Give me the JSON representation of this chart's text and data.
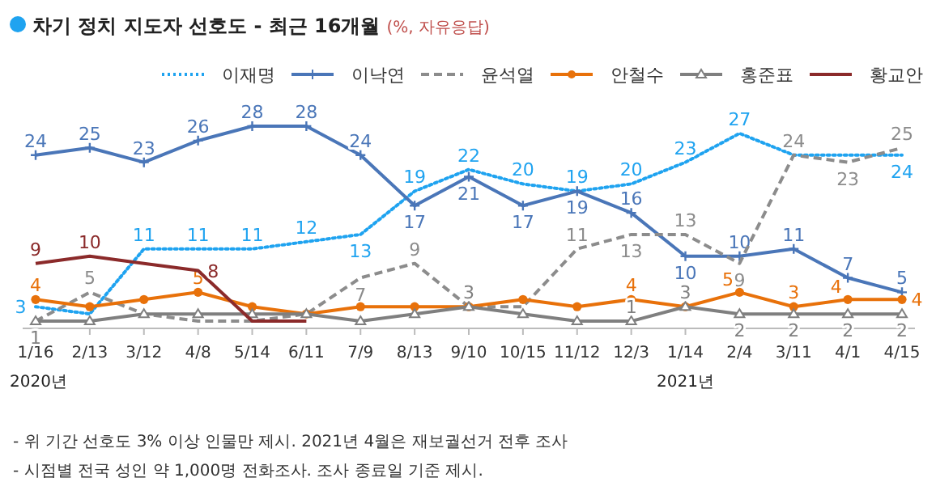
{
  "chart_data": {
    "type": "line",
    "title": "차기 정치 지도자 선호도 - 최근 16개월",
    "subtitle": "(%, 자유응답)",
    "categories": [
      "1/16",
      "2/13",
      "3/12",
      "4/8",
      "5/14",
      "6/11",
      "7/9",
      "8/13",
      "9/10",
      "10/15",
      "11/12",
      "12/3",
      "1/14",
      "2/4",
      "3/11",
      "4/1",
      "4/15"
    ],
    "series": [
      {
        "name": "이재명",
        "color": "#1fa3f0",
        "line_style": "dotted",
        "marker": "none",
        "values": [
          3,
          2,
          11,
          11,
          11,
          12,
          13,
          19,
          22,
          20,
          19,
          20,
          23,
          27,
          24,
          24,
          24
        ],
        "value_labels": [
          "3",
          null,
          "11",
          "11",
          "11",
          "12",
          "13",
          "19",
          "22",
          "20",
          "19",
          "20",
          "23",
          "27",
          null,
          null,
          "24"
        ]
      },
      {
        "name": "이낙연",
        "color": "#4a76b8",
        "line_style": "solid",
        "marker": "cross",
        "values": [
          24,
          25,
          23,
          26,
          28,
          28,
          24,
          17,
          21,
          17,
          19,
          16,
          10,
          10,
          11,
          7,
          5
        ],
        "value_labels": [
          "24",
          "25",
          "23",
          "26",
          "28",
          "28",
          "24",
          "17",
          "21",
          "17",
          "19",
          "16",
          "10",
          "10",
          "11",
          "7",
          "5"
        ]
      },
      {
        "name": "윤석열",
        "color": "#8c8c8c",
        "line_style": "dashed",
        "marker": "none",
        "values": [
          1,
          5,
          2,
          1,
          1,
          2,
          7,
          9,
          3,
          3,
          11,
          13,
          13,
          9,
          24,
          23,
          25
        ],
        "value_labels": [
          null,
          "5",
          null,
          null,
          null,
          null,
          "7",
          "9",
          null,
          null,
          "11",
          "13",
          "13",
          "9",
          "24",
          "23",
          "25"
        ]
      },
      {
        "name": "안철수",
        "color": "#e8710a",
        "line_style": "solid",
        "marker": "circle",
        "values": [
          4,
          3,
          4,
          5,
          3,
          2,
          3,
          3,
          3,
          4,
          3,
          4,
          3,
          5,
          3,
          4,
          4
        ],
        "value_labels": [
          "4",
          null,
          null,
          "5",
          null,
          null,
          null,
          null,
          null,
          null,
          null,
          "4",
          null,
          "5",
          "3",
          "4",
          "4"
        ]
      },
      {
        "name": "홍준표",
        "color": "#7f7f7f",
        "line_style": "solid",
        "marker": "triangle",
        "values": [
          1,
          1,
          2,
          2,
          2,
          2,
          1,
          2,
          3,
          2,
          1,
          1,
          3,
          2,
          2,
          2,
          2
        ],
        "value_labels": [
          "1",
          null,
          null,
          null,
          null,
          null,
          null,
          null,
          "3",
          null,
          null,
          "1",
          "3",
          "2",
          "2",
          "2",
          "2"
        ]
      },
      {
        "name": "황교안",
        "color": "#8b2a2a",
        "line_style": "solid",
        "marker": "none",
        "values": [
          9,
          10,
          9,
          8,
          1,
          1,
          null,
          null,
          null,
          null,
          null,
          null,
          null,
          null,
          null,
          null,
          null
        ],
        "value_labels": [
          "9",
          "10",
          null,
          "8",
          null,
          null,
          null,
          null,
          null,
          null,
          null,
          null,
          null,
          null,
          null,
          null,
          null
        ]
      }
    ],
    "legend": "top right",
    "grid": false,
    "annotations": [
      "2020년",
      "2021년",
      "- 위 기간 선호도 3% 이상 인물만 제시. 2021년 4월은 재보궐선거 전후 조사",
      "- 시점별 전국 성인 약 1,000명 전화조사. 조사 종료일 기준 제시."
    ]
  }
}
